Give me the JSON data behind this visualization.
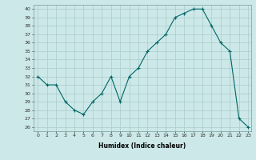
{
  "x": [
    0,
    1,
    2,
    3,
    4,
    5,
    6,
    7,
    8,
    9,
    10,
    11,
    12,
    13,
    14,
    15,
    16,
    17,
    18,
    19,
    20,
    21,
    22,
    23
  ],
  "y": [
    32,
    31,
    31,
    29,
    28,
    27.5,
    29,
    30,
    32,
    29,
    32,
    33,
    35,
    36,
    37,
    39,
    39.5,
    40,
    40,
    38,
    36,
    35,
    27,
    26
  ],
  "title": "",
  "xlabel": "Humidex (Indice chaleur)",
  "ylabel": "",
  "ylim": [
    25.5,
    40.5
  ],
  "xlim": [
    -0.5,
    23.3
  ],
  "line_color": "#006666",
  "marker": "+",
  "bg_color": "#cce8e8",
  "grid_color": "#aacccc",
  "yticks": [
    26,
    27,
    28,
    29,
    30,
    31,
    32,
    33,
    34,
    35,
    36,
    37,
    38,
    39,
    40
  ],
  "xticks": [
    0,
    1,
    2,
    3,
    4,
    5,
    6,
    7,
    8,
    9,
    10,
    11,
    12,
    13,
    14,
    15,
    16,
    17,
    18,
    19,
    20,
    21,
    22,
    23
  ]
}
